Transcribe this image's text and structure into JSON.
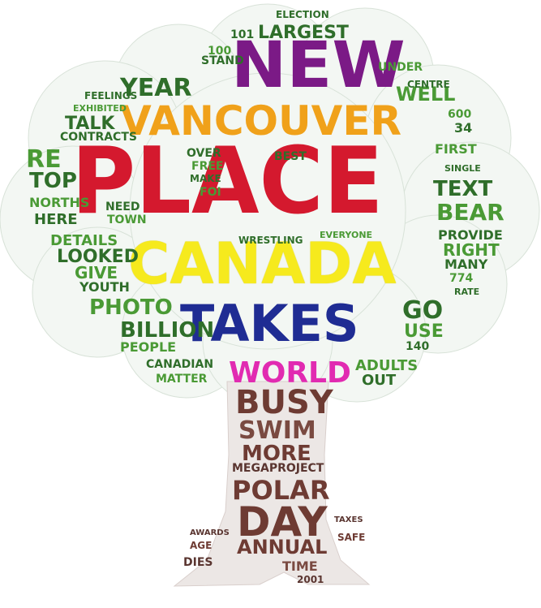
{
  "colors": {
    "purple": "#7b1a86",
    "orange": "#f0a11a",
    "red": "#d4192e",
    "yellow": "#f6ea1d",
    "blue": "#1f2c93",
    "magenta": "#e12bb1",
    "green": "#4a9a35",
    "dark_green": "#2f6e2a",
    "brown": "#6e3b33",
    "canopy_bg": "#f3f7f3",
    "trunk_bg": "#ece7e5"
  },
  "words": {
    "new": "NEW",
    "vancouver": "VANCOUVER",
    "place": "PLACE",
    "canada": "CANADA",
    "takes": "TAKES",
    "world": "WORLD",
    "year": "YEAR",
    "largest": "LARGEST",
    "talk": "TALK",
    "contracts": "CONTRACTS",
    "re": "RE",
    "top": "TOP",
    "norths": "NORTHS",
    "here": "HERE",
    "details": "DETAILS",
    "looked": "LOOKED",
    "give": "GIVE",
    "youth": "YOUTH",
    "photo": "PHOTO",
    "billion": "BILLION",
    "people": "PEOPLE",
    "canadian": "CANADIAN",
    "matter": "MATTER",
    "well": "WELL",
    "first": "FIRST",
    "text": "TEXT",
    "bear": "BEAR",
    "provide": "PROVIDE",
    "right": "RIGHT",
    "many": "MANY",
    "n774": "774",
    "go": "GO",
    "use": "USE",
    "adults": "ADULTS",
    "out": "OUT",
    "n34": "34",
    "n600": "600",
    "stand": "STAND",
    "n100": "100",
    "n101": "101",
    "election": "ELECTION",
    "under": "UNDER",
    "centre": "CENTRE",
    "feelings": "FEELINGS",
    "exhibited": "EXHIBITED",
    "over": "OVER",
    "free": "FREE",
    "make": "MAKE",
    "foi": "FOI",
    "need": "NEED",
    "town": "TOWN",
    "best": "BEST",
    "wrestling": "WRESTLING",
    "everyone": "EVERYONE",
    "single": "SINGLE",
    "rate": "RATE",
    "n140": "140",
    "busy": "BUSY",
    "swim": "SWIM",
    "more": "MORE",
    "megaproject": "MEGAPROJECT",
    "polar": "POLAR",
    "day": "DAY",
    "annual": "ANNUAL",
    "time": "TIME",
    "n2001": "2001",
    "dies": "DIES",
    "age": "AGE",
    "awards": "AWARDS",
    "safe": "SAFE",
    "taxes": "TAXES"
  }
}
